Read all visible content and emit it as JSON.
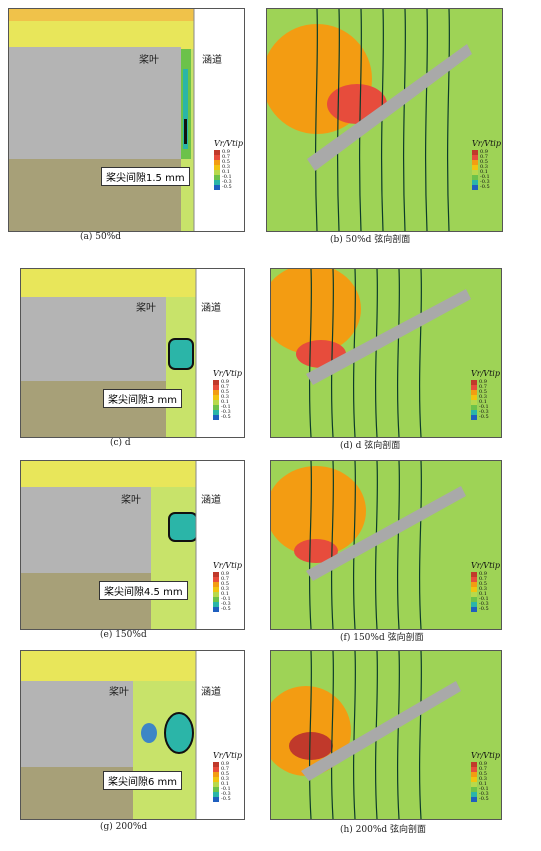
{
  "labels": {
    "blade": "桨叶",
    "duct": "涵道",
    "legend_title": "Vr/Vtip"
  },
  "legend_levels": [
    "0.9",
    "0.7",
    "0.5",
    "0.3",
    "0.1",
    "-0.1",
    "-0.3",
    "-0.5"
  ],
  "legend_colors": [
    "#c0392b",
    "#e74c3c",
    "#f39c12",
    "#f1c40f",
    "#b7d94c",
    "#6cc24a",
    "#2bb5a8",
    "#1f5fbf"
  ],
  "rows": [
    {
      "gap": "桨尖间隙1.5 mm",
      "left_caption": "(a) 50%d",
      "right_caption": "(b) 50%d 弦向剖面"
    },
    {
      "gap": "桨尖间隙3 mm",
      "left_caption": "(c) d",
      "right_caption": "(d) d 弦向剖面"
    },
    {
      "gap": "桨尖间隙4.5 mm",
      "left_caption": "(e) 150%d",
      "right_caption": "(f) 150%d 弦向剖面"
    },
    {
      "gap": "桨尖间隙6 mm",
      "left_caption": "(g) 200%d",
      "right_caption": "(h) 200%d 弦向剖面"
    }
  ]
}
